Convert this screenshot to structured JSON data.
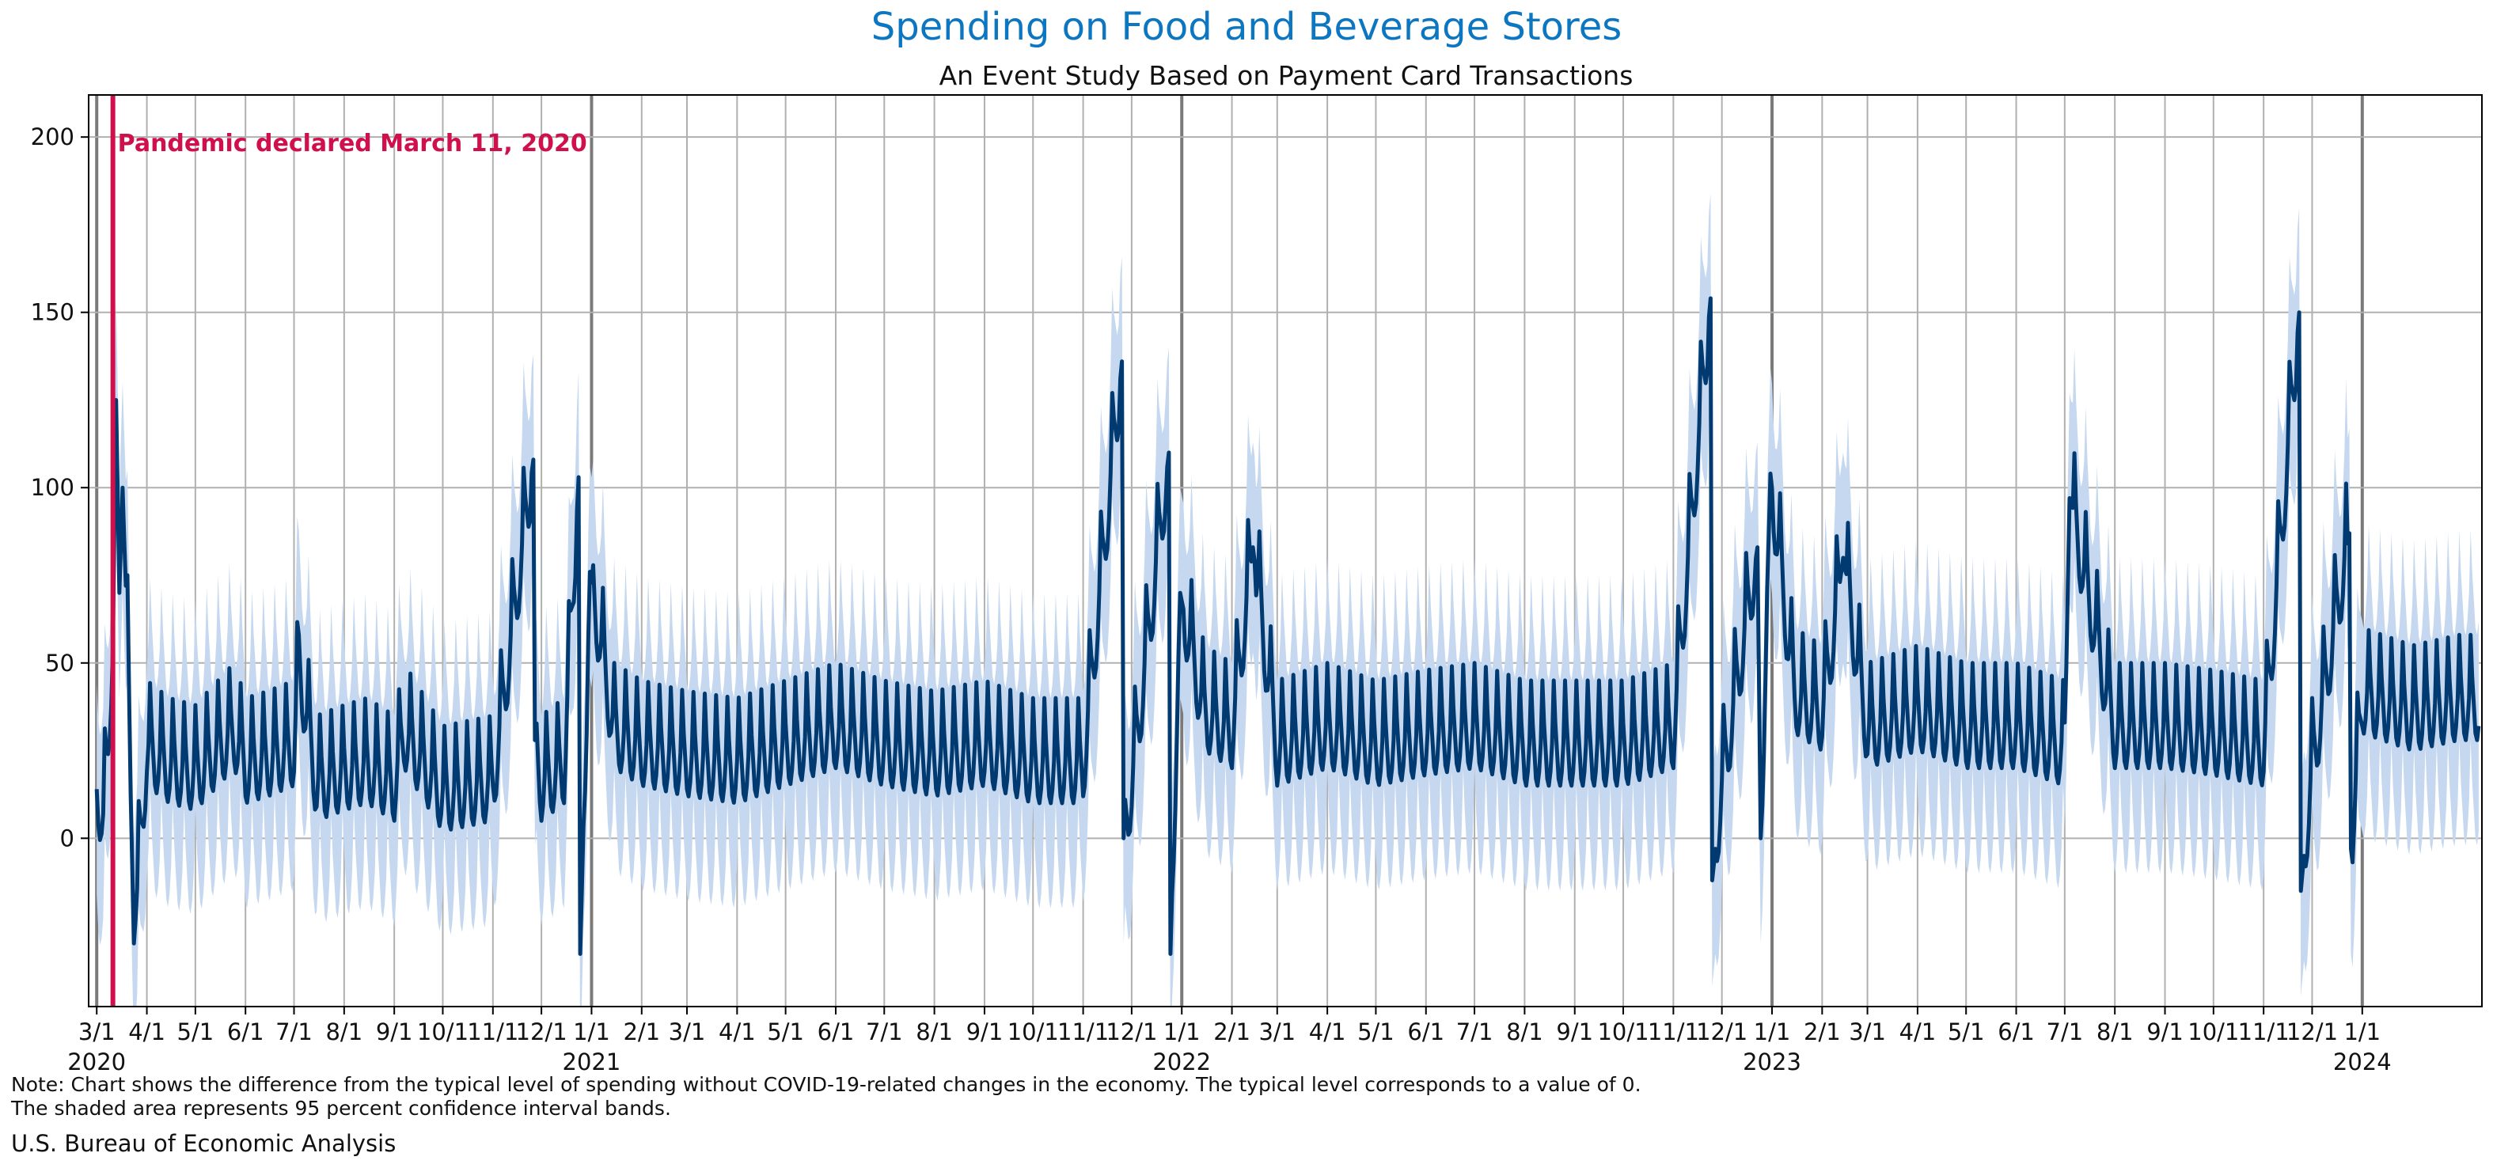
{
  "chart_data": {
    "type": "line",
    "title": "Spending on Food and Beverage Stores",
    "subtitle": "An Event Study Based on Payment Card Transactions",
    "xlabel": "",
    "ylabel": "",
    "ylim": [
      -48,
      212
    ],
    "xlim": [
      "2020-02-25",
      "2024-03-15"
    ],
    "y_ticks": [
      0,
      50,
      100,
      150,
      200
    ],
    "grid": true,
    "x_ticks": [
      {
        "date": "2020-03-01",
        "label": "3/1",
        "year": "2020"
      },
      {
        "date": "2020-04-01",
        "label": "4/1"
      },
      {
        "date": "2020-05-01",
        "label": "5/1"
      },
      {
        "date": "2020-06-01",
        "label": "6/1"
      },
      {
        "date": "2020-07-01",
        "label": "7/1"
      },
      {
        "date": "2020-08-01",
        "label": "8/1"
      },
      {
        "date": "2020-09-01",
        "label": "9/1"
      },
      {
        "date": "2020-10-01",
        "label": "10/1"
      },
      {
        "date": "2020-11-01",
        "label": "11/1"
      },
      {
        "date": "2020-12-01",
        "label": "12/1"
      },
      {
        "date": "2021-01-01",
        "label": "1/1",
        "year": "2021"
      },
      {
        "date": "2021-02-01",
        "label": "2/1"
      },
      {
        "date": "2021-03-01",
        "label": "3/1"
      },
      {
        "date": "2021-04-01",
        "label": "4/1"
      },
      {
        "date": "2021-05-01",
        "label": "5/1"
      },
      {
        "date": "2021-06-01",
        "label": "6/1"
      },
      {
        "date": "2021-07-01",
        "label": "7/1"
      },
      {
        "date": "2021-08-01",
        "label": "8/1"
      },
      {
        "date": "2021-09-01",
        "label": "9/1"
      },
      {
        "date": "2021-10-01",
        "label": "10/1"
      },
      {
        "date": "2021-11-01",
        "label": "11/1"
      },
      {
        "date": "2021-12-01",
        "label": "12/1"
      },
      {
        "date": "2022-01-01",
        "label": "1/1",
        "year": "2022"
      },
      {
        "date": "2022-02-01",
        "label": "2/1"
      },
      {
        "date": "2022-03-01",
        "label": "3/1"
      },
      {
        "date": "2022-04-01",
        "label": "4/1"
      },
      {
        "date": "2022-05-01",
        "label": "5/1"
      },
      {
        "date": "2022-06-01",
        "label": "6/1"
      },
      {
        "date": "2022-07-01",
        "label": "7/1"
      },
      {
        "date": "2022-08-01",
        "label": "8/1"
      },
      {
        "date": "2022-09-01",
        "label": "9/1"
      },
      {
        "date": "2022-10-01",
        "label": "10/1"
      },
      {
        "date": "2022-11-01",
        "label": "11/1"
      },
      {
        "date": "2022-12-01",
        "label": "12/1"
      },
      {
        "date": "2023-01-01",
        "label": "1/1",
        "year": "2023"
      },
      {
        "date": "2023-02-01",
        "label": "2/1"
      },
      {
        "date": "2023-03-01",
        "label": "3/1"
      },
      {
        "date": "2023-04-01",
        "label": "4/1"
      },
      {
        "date": "2023-05-01",
        "label": "5/1"
      },
      {
        "date": "2023-06-01",
        "label": "6/1"
      },
      {
        "date": "2023-07-01",
        "label": "7/1"
      },
      {
        "date": "2023-08-01",
        "label": "8/1"
      },
      {
        "date": "2023-09-01",
        "label": "9/1"
      },
      {
        "date": "2023-10-01",
        "label": "10/1"
      },
      {
        "date": "2023-11-01",
        "label": "11/1"
      },
      {
        "date": "2023-12-01",
        "label": "12/1"
      },
      {
        "date": "2024-01-01",
        "label": "1/1",
        "year": "2024"
      }
    ],
    "event_line": {
      "date": "2020-03-11",
      "label": "Pandemic declared March 11, 2020",
      "color": "#d0104c"
    },
    "series": [
      {
        "points": [
          [
            "2020-03-01",
            14
          ],
          [
            "2020-03-05",
            5
          ],
          [
            "2020-03-08",
            24
          ],
          [
            "2020-03-11",
            60
          ],
          [
            "2020-03-13",
            125
          ],
          [
            "2020-03-15",
            70
          ],
          [
            "2020-03-17",
            100
          ],
          [
            "2020-03-20",
            55
          ],
          [
            "2020-03-24",
            -30
          ],
          [
            "2020-04-01",
            25
          ],
          [
            "2020-04-15",
            20
          ],
          [
            "2020-05-01",
            18
          ],
          [
            "2020-05-25",
            30
          ],
          [
            "2020-06-01",
            20
          ],
          [
            "2020-06-15",
            22
          ],
          [
            "2020-07-01",
            25
          ],
          [
            "2020-07-04",
            50
          ],
          [
            "2020-07-15",
            15
          ],
          [
            "2020-08-01",
            18
          ],
          [
            "2020-08-15",
            20
          ],
          [
            "2020-09-01",
            15
          ],
          [
            "2020-09-07",
            30
          ],
          [
            "2020-10-01",
            12
          ],
          [
            "2020-11-01",
            15
          ],
          [
            "2020-11-26",
            108
          ],
          [
            "2020-11-27",
            28
          ],
          [
            "2020-12-01",
            15
          ],
          [
            "2020-12-15",
            20
          ],
          [
            "2020-12-24",
            103
          ],
          [
            "2020-12-25",
            -33
          ],
          [
            "2020-12-31",
            76
          ],
          [
            "2021-01-15",
            30
          ],
          [
            "2021-02-01",
            25
          ],
          [
            "2021-03-01",
            22
          ],
          [
            "2021-04-01",
            20
          ],
          [
            "2021-05-01",
            25
          ],
          [
            "2021-06-01",
            30
          ],
          [
            "2021-07-01",
            25
          ],
          [
            "2021-08-01",
            22
          ],
          [
            "2021-09-01",
            25
          ],
          [
            "2021-10-01",
            20
          ],
          [
            "2021-11-01",
            20
          ],
          [
            "2021-11-25",
            136
          ],
          [
            "2021-11-26",
            0
          ],
          [
            "2021-12-01",
            15
          ],
          [
            "2021-12-24",
            110
          ],
          [
            "2021-12-25",
            -33
          ],
          [
            "2021-12-31",
            70
          ],
          [
            "2022-01-15",
            35
          ],
          [
            "2022-02-01",
            30
          ],
          [
            "2022-02-14",
            83
          ],
          [
            "2022-03-01",
            25
          ],
          [
            "2022-04-01",
            30
          ],
          [
            "2022-05-01",
            25
          ],
          [
            "2022-06-01",
            28
          ],
          [
            "2022-07-01",
            30
          ],
          [
            "2022-08-01",
            25
          ],
          [
            "2022-09-01",
            25
          ],
          [
            "2022-10-01",
            25
          ],
          [
            "2022-11-01",
            30
          ],
          [
            "2022-11-24",
            154
          ],
          [
            "2022-11-25",
            -12
          ],
          [
            "2022-12-01",
            15
          ],
          [
            "2022-12-23",
            83
          ],
          [
            "2022-12-25",
            0
          ],
          [
            "2022-12-31",
            104
          ],
          [
            "2023-01-15",
            40
          ],
          [
            "2023-02-01",
            35
          ],
          [
            "2023-02-14",
            80
          ],
          [
            "2023-03-01",
            30
          ],
          [
            "2023-04-01",
            35
          ],
          [
            "2023-05-01",
            30
          ],
          [
            "2023-06-01",
            30
          ],
          [
            "2023-07-01",
            25
          ],
          [
            "2023-07-04",
            97
          ],
          [
            "2023-08-01",
            30
          ],
          [
            "2023-09-01",
            30
          ],
          [
            "2023-10-01",
            28
          ],
          [
            "2023-11-01",
            25
          ],
          [
            "2023-11-23",
            150
          ],
          [
            "2023-11-24",
            -15
          ],
          [
            "2023-12-01",
            20
          ],
          [
            "2023-12-24",
            87
          ],
          [
            "2023-12-25",
            -3
          ],
          [
            "2024-01-01",
            40
          ],
          [
            "2024-02-01",
            35
          ],
          [
            "2024-03-01",
            38
          ],
          [
            "2024-03-13",
            38
          ]
        ],
        "color": "#003a70"
      }
    ],
    "confidence_band": {
      "label": "95 percent confidence interval bands",
      "color": "#c5d8f0",
      "half_width": 30
    }
  },
  "footer": {
    "note_line1": "Note: Chart shows the difference from the typical level of spending without COVID-19-related changes in the economy. The typical level corresponds to a value of 0.",
    "note_line2": "The shaded area represents 95 percent confidence interval bands.",
    "source": "U.S. Bureau of Economic Analysis"
  }
}
